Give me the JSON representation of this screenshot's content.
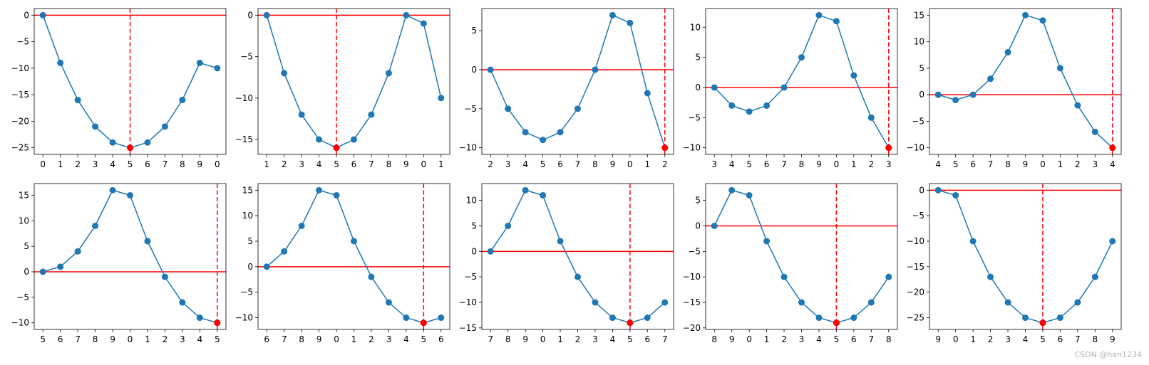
{
  "colors": {
    "series": "#1f77b4",
    "reference": "#ff0000",
    "highlight": "#ff0000"
  },
  "watermark": "CSDN @han1234",
  "chart_data": [
    {
      "type": "line",
      "x": [
        "0",
        "1",
        "2",
        "3",
        "4",
        "5",
        "6",
        "7",
        "8",
        "9",
        "0"
      ],
      "values": [
        0,
        -9,
        -16,
        -21,
        -24,
        -25,
        -24,
        -21,
        -16,
        -9,
        -10
      ],
      "highlight_index": 5,
      "hline": 0,
      "vline_index": 5,
      "ylim": [
        -26.25,
        1.25
      ],
      "yticks": [
        -25,
        -20,
        -15,
        -10,
        -5,
        0
      ],
      "grid": false
    },
    {
      "type": "line",
      "x": [
        "1",
        "2",
        "3",
        "4",
        "5",
        "6",
        "7",
        "8",
        "9",
        "0",
        "1"
      ],
      "values": [
        0,
        -7,
        -12,
        -15,
        -16,
        -15,
        -12,
        -7,
        0,
        -1,
        -10
      ],
      "highlight_index": 4,
      "hline": 0,
      "vline_index": 4,
      "ylim": [
        -16.8,
        0.8
      ],
      "yticks": [
        -15,
        -10,
        -5,
        0
      ],
      "grid": false
    },
    {
      "type": "line",
      "x": [
        "2",
        "3",
        "4",
        "5",
        "6",
        "7",
        "8",
        "9",
        "0",
        "1",
        "2"
      ],
      "values": [
        0,
        -5,
        -8,
        -9,
        -8,
        -5,
        0,
        7,
        6,
        -3,
        -10
      ],
      "highlight_index": 10,
      "hline": 0,
      "vline_index": 10,
      "ylim": [
        -10.85,
        7.85
      ],
      "yticks": [
        -10,
        -5,
        0,
        5
      ],
      "grid": false
    },
    {
      "type": "line",
      "x": [
        "3",
        "4",
        "5",
        "6",
        "7",
        "8",
        "9",
        "0",
        "1",
        "2",
        "3"
      ],
      "values": [
        0,
        -3,
        -4,
        -3,
        0,
        5,
        12,
        11,
        2,
        -5,
        -10
      ],
      "highlight_index": 10,
      "hline": 0,
      "vline_index": 10,
      "ylim": [
        -11.1,
        13.1
      ],
      "yticks": [
        -10,
        -5,
        0,
        5,
        10
      ],
      "grid": false
    },
    {
      "type": "line",
      "x": [
        "4",
        "5",
        "6",
        "7",
        "8",
        "9",
        "0",
        "1",
        "2",
        "3",
        "4"
      ],
      "values": [
        0,
        -1,
        0,
        3,
        8,
        15,
        14,
        5,
        -2,
        -7,
        -10
      ],
      "highlight_index": 10,
      "hline": 0,
      "vline_index": 10,
      "ylim": [
        -11.25,
        16.25
      ],
      "yticks": [
        -10,
        -5,
        0,
        5,
        10,
        15
      ],
      "grid": false
    },
    {
      "type": "line",
      "x": [
        "5",
        "6",
        "7",
        "8",
        "9",
        "0",
        "1",
        "2",
        "3",
        "4",
        "5"
      ],
      "values": [
        0,
        1,
        4,
        9,
        16,
        15,
        6,
        -1,
        -6,
        -9,
        -10
      ],
      "highlight_index": 10,
      "hline": 0,
      "vline_index": 10,
      "ylim": [
        -11.3,
        17.3
      ],
      "yticks": [
        -10,
        -5,
        0,
        5,
        10,
        15
      ],
      "grid": false
    },
    {
      "type": "line",
      "x": [
        "6",
        "7",
        "8",
        "9",
        "0",
        "1",
        "2",
        "3",
        "4",
        "5",
        "6"
      ],
      "values": [
        0,
        3,
        8,
        15,
        14,
        5,
        -2,
        -7,
        -10,
        -11,
        -10
      ],
      "highlight_index": 9,
      "hline": 0,
      "vline_index": 9,
      "ylim": [
        -12.3,
        16.3
      ],
      "yticks": [
        -10,
        -5,
        0,
        5,
        10,
        15
      ],
      "grid": false
    },
    {
      "type": "line",
      "x": [
        "7",
        "8",
        "9",
        "0",
        "1",
        "2",
        "3",
        "4",
        "5",
        "6",
        "7"
      ],
      "values": [
        0,
        5,
        12,
        11,
        2,
        -5,
        -10,
        -13,
        -14,
        -13,
        -10
      ],
      "highlight_index": 8,
      "hline": 0,
      "vline_index": 8,
      "ylim": [
        -15.3,
        13.3
      ],
      "yticks": [
        -15,
        -10,
        -5,
        0,
        5,
        10
      ],
      "grid": false
    },
    {
      "type": "line",
      "x": [
        "8",
        "9",
        "0",
        "1",
        "2",
        "3",
        "4",
        "5",
        "6",
        "7",
        "8"
      ],
      "values": [
        0,
        7,
        6,
        -3,
        -10,
        -15,
        -18,
        -19,
        -18,
        -15,
        -10
      ],
      "highlight_index": 7,
      "hline": 0,
      "vline_index": 7,
      "ylim": [
        -20.3,
        8.3
      ],
      "yticks": [
        -20,
        -15,
        -10,
        -5,
        0,
        5
      ],
      "grid": false
    },
    {
      "type": "line",
      "x": [
        "9",
        "0",
        "1",
        "2",
        "3",
        "4",
        "5",
        "6",
        "7",
        "8",
        "9"
      ],
      "values": [
        0,
        -1,
        -10,
        -17,
        -22,
        -25,
        -26,
        -25,
        -22,
        -17,
        -10
      ],
      "highlight_index": 6,
      "hline": 0,
      "vline_index": 6,
      "ylim": [
        -27.3,
        1.3
      ],
      "yticks": [
        -25,
        -20,
        -15,
        -10,
        -5,
        0
      ],
      "grid": false
    }
  ]
}
